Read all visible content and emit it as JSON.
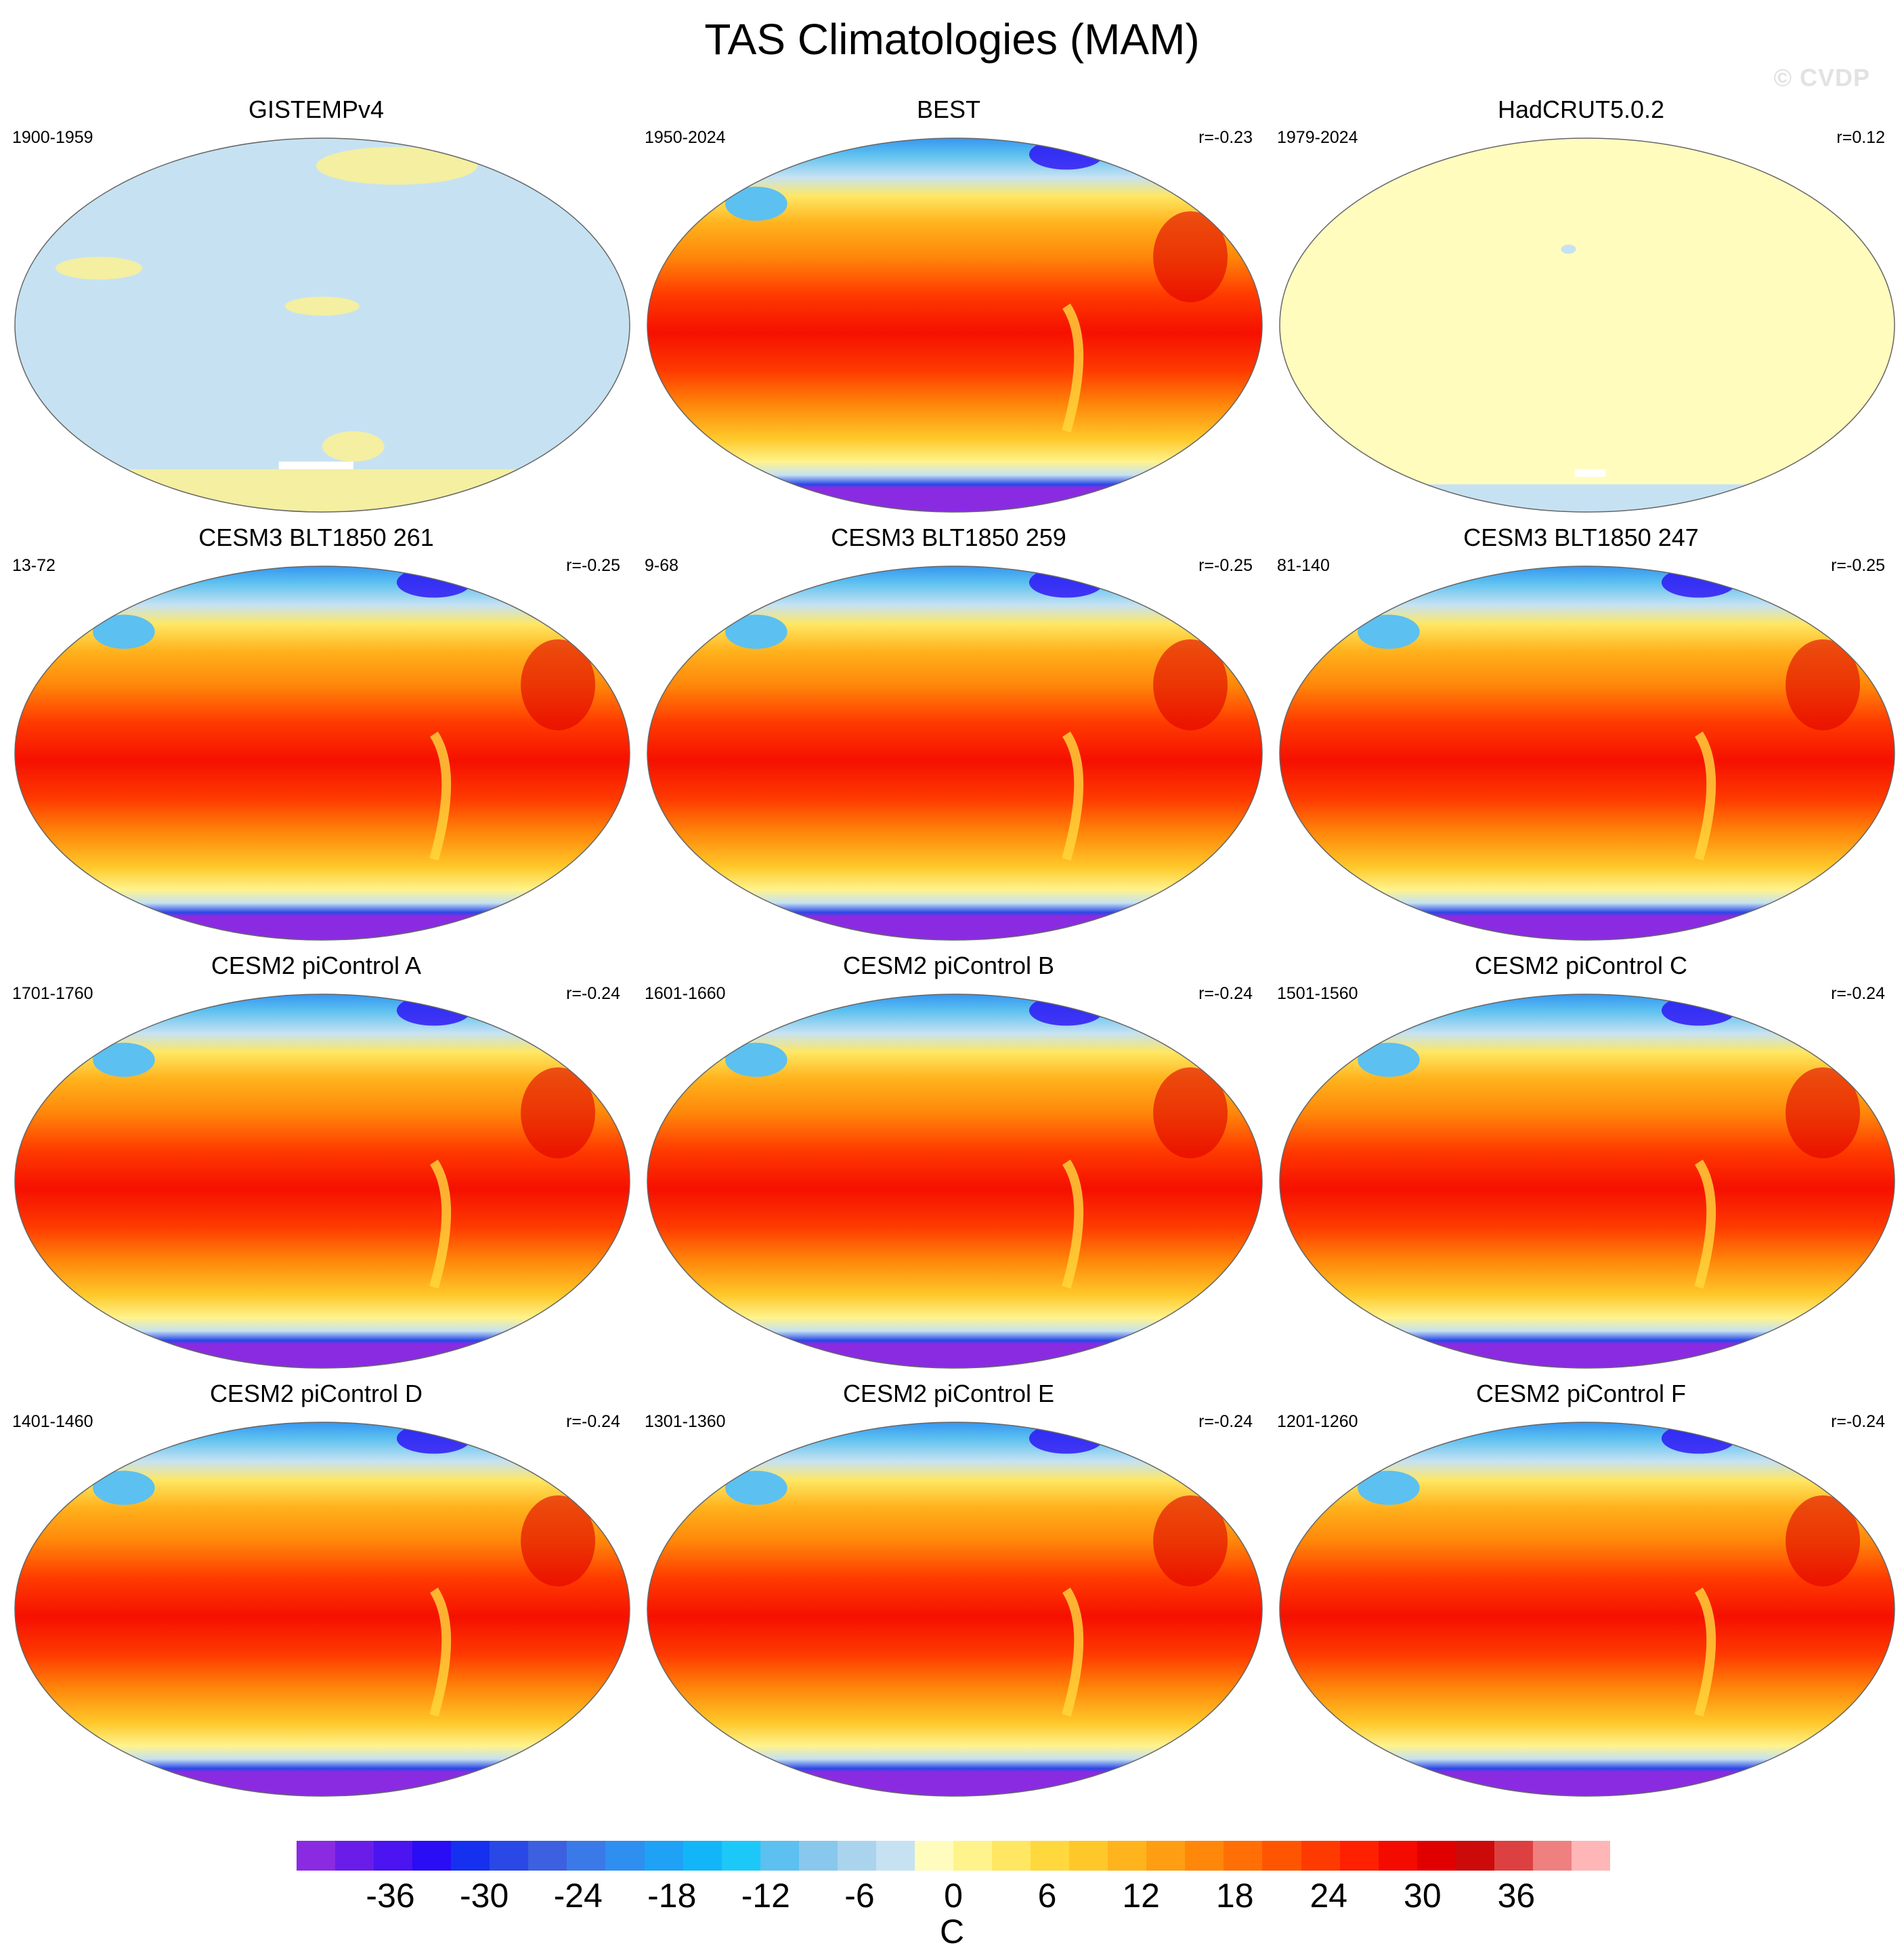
{
  "title": "TAS Climatologies (MAM)",
  "watermark": "© CVDP",
  "panels": [
    {
      "name": "GISTEMPv4",
      "period": "1900-1959",
      "r": "",
      "style": "gistemp"
    },
    {
      "name": "BEST",
      "period": "1950-2024",
      "r": "r=-0.23",
      "style": "climatology"
    },
    {
      "name": "HadCRUT5.0.2",
      "period": "1979-2024",
      "r": "r=0.12",
      "style": "hadcrut"
    },
    {
      "name": "CESM3 BLT1850 261",
      "period": "13-72",
      "r": "r=-0.25",
      "style": "climatology"
    },
    {
      "name": "CESM3 BLT1850 259",
      "period": "9-68",
      "r": "r=-0.25",
      "style": "climatology"
    },
    {
      "name": "CESM3 BLT1850 247",
      "period": "81-140",
      "r": "r=-0.25",
      "style": "climatology"
    },
    {
      "name": "CESM2 piControl A",
      "period": "1701-1760",
      "r": "r=-0.24",
      "style": "climatology"
    },
    {
      "name": "CESM2 piControl B",
      "period": "1601-1660",
      "r": "r=-0.24",
      "style": "climatology"
    },
    {
      "name": "CESM2 piControl C",
      "period": "1501-1560",
      "r": "r=-0.24",
      "style": "climatology"
    },
    {
      "name": "CESM2 piControl D",
      "period": "1401-1460",
      "r": "r=-0.24",
      "style": "climatology"
    },
    {
      "name": "CESM2 piControl E",
      "period": "1301-1360",
      "r": "r=-0.24",
      "style": "climatology"
    },
    {
      "name": "CESM2 piControl F",
      "period": "1201-1260",
      "r": "r=-0.24",
      "style": "climatology"
    }
  ],
  "colorbar": {
    "unit": "C",
    "min": -42,
    "max": 42,
    "ticks": [
      "-36",
      "-30",
      "-24",
      "-18",
      "-12",
      "-6",
      "0",
      "6",
      "12",
      "18",
      "24",
      "30",
      "36"
    ],
    "colors": [
      "#8a2be2",
      "#6a1de8",
      "#4b14f0",
      "#2a0cf5",
      "#1630f0",
      "#2a48e6",
      "#3c60e0",
      "#3a7ae8",
      "#2f8ff0",
      "#1fa2f5",
      "#12b6f8",
      "#1cc8f8",
      "#5cc0f0",
      "#88c8ec",
      "#aad4ee",
      "#c6e2f2",
      "#fffcbe",
      "#fff38c",
      "#ffe763",
      "#ffd83d",
      "#ffc82a",
      "#ffb31d",
      "#ff9e12",
      "#ff870a",
      "#ff6f05",
      "#ff5500",
      "#ff3a00",
      "#ff2000",
      "#f50a00",
      "#e00000",
      "#cc0a0a",
      "#dd4040",
      "#ee8080",
      "#ffb6b6"
    ]
  }
}
